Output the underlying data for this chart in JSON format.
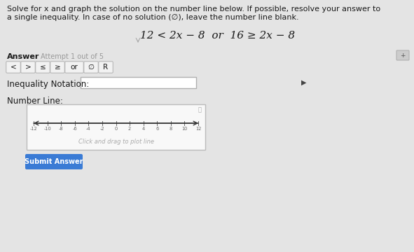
{
  "bg_color": "#e4e4e4",
  "title_text1": "Solve for x and graph the solution on the number line below. If possible, resolve your answer to",
  "title_text2": "a single inequality. In case of no solution (∅), leave the number line blank.",
  "equation": "12 < 2x − 8  or  16 ≥ 2x − 8",
  "answer_label": "Answer",
  "attempt_label": "Attempt 1 out of 5",
  "buttons": [
    "<",
    ">",
    "≤",
    "≥",
    "or",
    "∅",
    "R"
  ],
  "inequality_label": "Inequality Notation:",
  "number_line_label": "Number Line:",
  "number_line_hint": "Click and drag to plot line",
  "number_line_ticks": [
    -12,
    -10,
    -8,
    -6,
    -4,
    -2,
    0,
    2,
    4,
    6,
    8,
    10,
    12
  ],
  "submit_text": "Submit Answer",
  "submit_bg": "#3a7bd5",
  "submit_fg": "#ffffff",
  "help_icon_color": "#cccccc",
  "cursor_arrow_color": "#444444",
  "btn_face": "#f2f2f2",
  "btn_edge": "#b0b0b0",
  "box_face": "#ffffff",
  "box_edge": "#b0b0b0",
  "nl_box_face": "#f8f8f8",
  "nl_box_edge": "#bbbbbb",
  "text_dark": "#1a1a1a",
  "text_gray": "#999999",
  "nl_hint_color": "#aaaaaa",
  "tick_color": "#666666"
}
